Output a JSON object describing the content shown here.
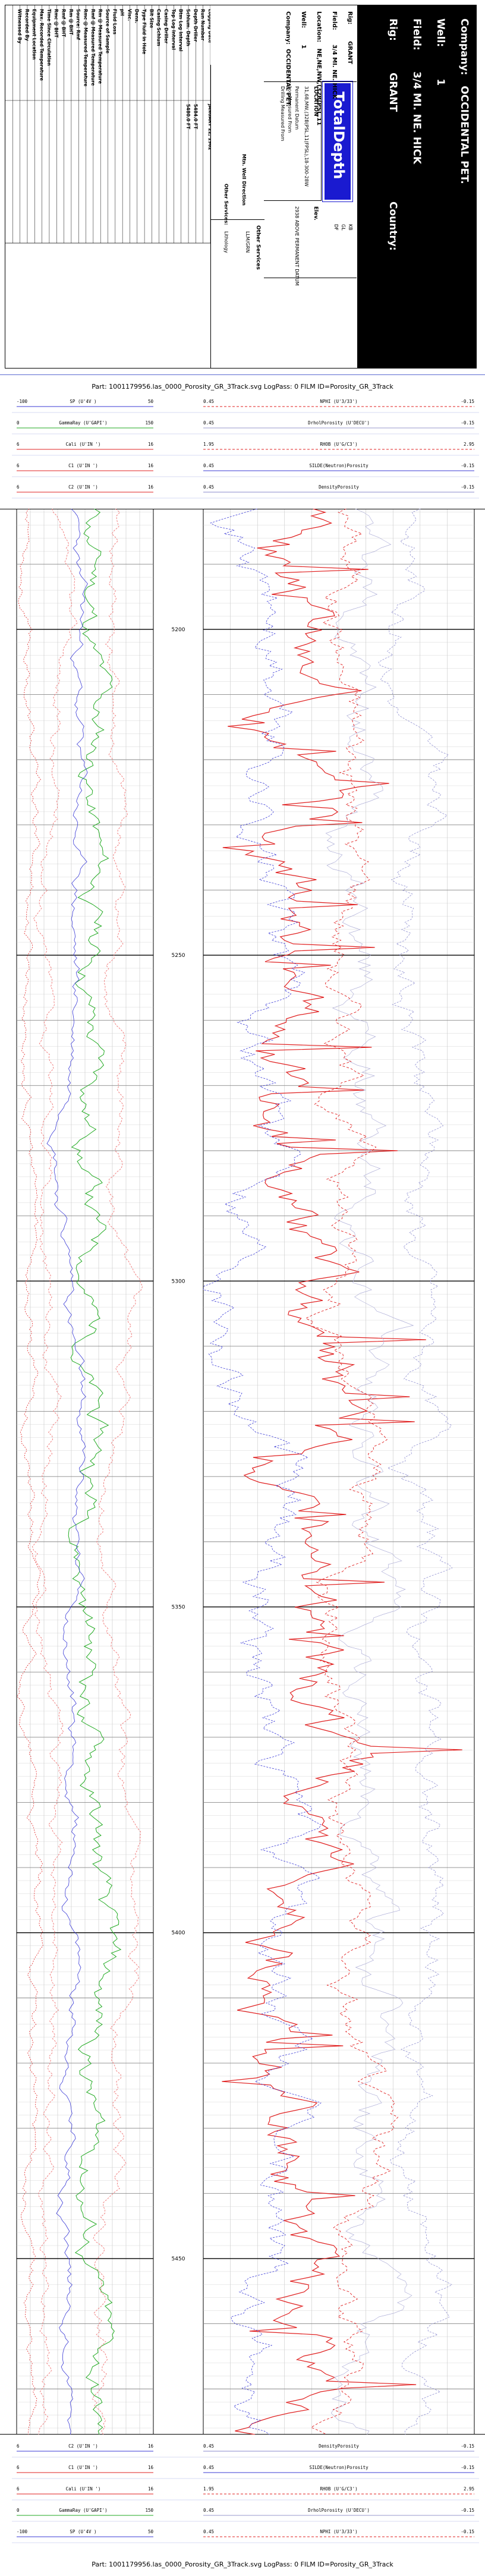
{
  "header": {
    "company_label": "Company:",
    "company": "OCCIDENTAL PET.",
    "well_label": "Well:",
    "well": "1",
    "field_label": "Field:",
    "field": "3/4 MI. NE. HICK",
    "rig_label": "Rig:",
    "rig": "GRANT",
    "country_label": "Country:",
    "logo": "TotalDepth",
    "summary": [
      {
        "label": "Rig:",
        "value": "GRANT"
      },
      {
        "label": "Field:",
        "value": "3/4 MI. NE. HICK"
      },
      {
        "label": "Location:",
        "value": "NE,NE,NW,(32B(PSL,11"
      },
      {
        "label": "Well:",
        "value": "1"
      },
      {
        "label": "Company:",
        "value": "OCCIDENTAL PET."
      }
    ],
    "location_title": "LOCATION",
    "location_lines": [
      "31,68,MW,(32B(PSL,11(FPSL),18-300-28W",
      "Permanent Datum",
      "Log Measured From",
      "Drilling Measured From"
    ],
    "elev_label": "Elev.",
    "elev_values": [
      "KB",
      "GL",
      "DF"
    ],
    "elev_text": "2938 ABOVE PERMANENT DATUM",
    "field_labels": [
      "Logging Date",
      "Run Number",
      "Depth Driller",
      "Schlum. Depth",
      "Btm Log Interval",
      "Top Log Interval",
      "Casing Driller",
      "Casing Schlum",
      "Bit Size",
      "Type Fluid in Hole",
      "Dens.",
      "Visc.",
      "pH",
      "Fluid Loss",
      "Source of Sample",
      "Rm @ Measured Temperature",
      "Rmf @ Measured Temperature",
      "Rmc @ Measured Temperature",
      "Source: Rmf",
      "Rm @ BHT",
      "Rmf @ BHT",
      "Rmc @ BHT",
      "Time Since Circulation",
      "Max. Recorded Temperature",
      "Equipment Location",
      "Recorded By",
      "Witnessed By"
    ],
    "field_values": [
      "JANUARY 22, 1962",
      "",
      "5484.0 FT",
      "5480.0 FT",
      "",
      "",
      "",
      "",
      "",
      "",
      "",
      "",
      "",
      "",
      "",
      "",
      "",
      "",
      "",
      "",
      "",
      "",
      "",
      "",
      "",
      "",
      ""
    ],
    "other_services_label": "Other Services",
    "other_services": "LLM/GRN",
    "mtn_label": "Mtn. Well Direction",
    "other_services2_label": "Other Services:",
    "other_services2": "Lithology"
  },
  "titles": {
    "mid": "Part: 1001179956.las_0000_Porosity_GR_3Track.svg LogPass: 0 FILM ID=Porosity_GR_3Track",
    "footer": "Part: 1001179956.las_0000_Porosity_GR_3Track.svg LogPass: 0 FILM ID=Porosity_GR_3Track"
  },
  "scales_top": [
    {
      "left_min": "-100",
      "left_name": "SP (U'4V )",
      "left_max": "50",
      "right_min": "0.45",
      "right_name": "NPHI (U'3/33')",
      "right_max": "-0.15",
      "right_dash": true
    },
    {
      "left_min": "0",
      "left_name": "GammaRay (U'GAPI')",
      "left_max": "150",
      "right_min": "0.45",
      "right_name": "DrholPorosity (U'DECU')",
      "right_max": "-0.15"
    },
    {
      "left_min": "6",
      "left_name": "Cali (U'IN ')",
      "left_max": "16",
      "right_min": "1.95",
      "right_name": "RHOB (U'G/C3')",
      "right_max": "2.95",
      "right_dash": true
    },
    {
      "left_min": "6",
      "left_name": "C1 (U'IN ')",
      "left_max": "16",
      "right_min": "0.45",
      "right_name": "SILDE(Neutron)Porosity",
      "right_max": "-0.15"
    },
    {
      "left_min": "6",
      "left_name": "C2 (U'IN ')",
      "left_max": "16",
      "right_min": "0.45",
      "right_name": "DensityPorosity",
      "right_max": "-0.15"
    }
  ],
  "scales_bottom": [
    {
      "left_min": "6",
      "left_name": "C2 (U'IN ')",
      "left_max": "16",
      "right_min": "0.45",
      "right_name": "DensityPorosity",
      "right_max": "-0.15"
    },
    {
      "left_min": "6",
      "left_name": "C1 (U'IN ')",
      "left_max": "16",
      "right_min": "0.45",
      "right_name": "SILDE(Neutron)Porosity",
      "right_max": "-0.15"
    },
    {
      "left_min": "6",
      "left_name": "Cali (U'IN ')",
      "left_max": "16",
      "right_min": "1.95",
      "right_name": "RHOB (U'G/C3')",
      "right_max": "2.95",
      "right_dash": true
    },
    {
      "left_min": "0",
      "left_name": "GammaRay (U'GAPI')",
      "left_max": "150",
      "right_min": "0.45",
      "right_name": "DrholPorosity (U'DECU')",
      "right_max": "-0.15"
    },
    {
      "left_min": "-100",
      "left_name": "SP (U'4V )",
      "left_max": "50",
      "right_min": "0.45",
      "right_name": "NPHI (U'3/33')",
      "right_max": "-0.15",
      "right_dash": true
    }
  ],
  "depth_labels": [
    "5200",
    "5250",
    "5300",
    "5350",
    "5400",
    "5450"
  ],
  "colors": {
    "red": "#e02020",
    "green": "#22aa22",
    "blue": "#3a3ad6",
    "lightred": "#f08080",
    "grid": "#bbbbbb"
  }
}
